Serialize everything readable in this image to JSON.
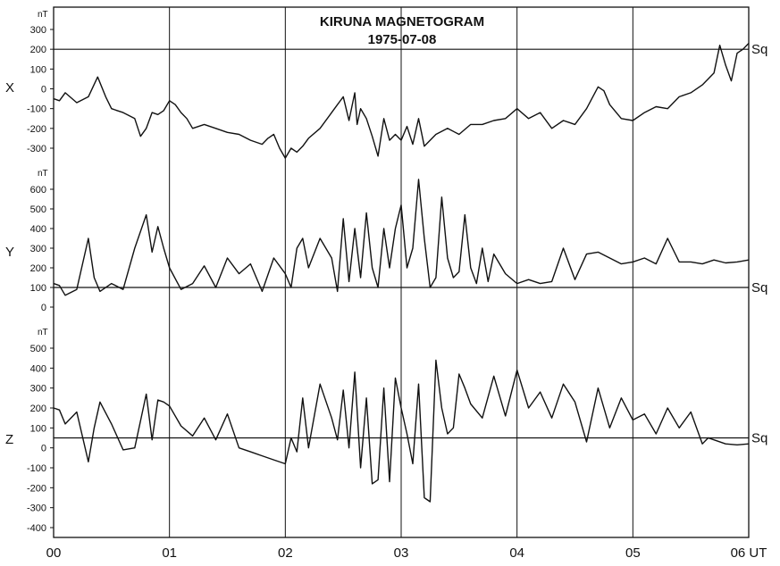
{
  "chart_data": {
    "type": "line",
    "title": "KIRUNA MAGNETOGRAM",
    "subtitle": "1975-07-08",
    "x_tick_labels": [
      "00",
      "01",
      "02",
      "03",
      "04",
      "05",
      "06 UT"
    ],
    "xlim": [
      0,
      6
    ],
    "panels": [
      {
        "component": "X",
        "unit": "nT",
        "ylim": [
          -300,
          300
        ],
        "ticks": [
          300,
          200,
          100,
          0,
          -100,
          -200,
          -300
        ],
        "tick_labels": [
          "300",
          "200",
          "100",
          "0",
          "-100",
          "-200",
          "-300"
        ],
        "sq_value": 200,
        "sq_label": "Sq",
        "x": [
          0,
          0.05,
          0.1,
          0.2,
          0.3,
          0.38,
          0.45,
          0.5,
          0.55,
          0.6,
          0.7,
          0.75,
          0.8,
          0.85,
          0.9,
          0.95,
          1.0,
          1.05,
          1.1,
          1.15,
          1.2,
          1.3,
          1.4,
          1.5,
          1.6,
          1.7,
          1.8,
          1.85,
          1.9,
          1.95,
          2.0,
          2.05,
          2.1,
          2.15,
          2.2,
          2.3,
          2.4,
          2.45,
          2.5,
          2.55,
          2.6,
          2.62,
          2.65,
          2.7,
          2.75,
          2.8,
          2.85,
          2.9,
          2.95,
          3.0,
          3.05,
          3.1,
          3.15,
          3.2,
          3.3,
          3.4,
          3.5,
          3.6,
          3.7,
          3.8,
          3.9,
          4.0,
          4.1,
          4.2,
          4.3,
          4.4,
          4.5,
          4.6,
          4.7,
          4.75,
          4.8,
          4.9,
          5.0,
          5.1,
          5.2,
          5.3,
          5.4,
          5.5,
          5.6,
          5.7,
          5.75,
          5.8,
          5.85,
          5.9,
          5.95,
          6.0
        ],
        "y": [
          -50,
          -60,
          -20,
          -70,
          -40,
          60,
          -40,
          -100,
          -110,
          -120,
          -150,
          -240,
          -200,
          -120,
          -130,
          -110,
          -60,
          -80,
          -120,
          -150,
          -200,
          -180,
          -200,
          -220,
          -230,
          -260,
          -280,
          -250,
          -230,
          -300,
          -350,
          -300,
          -320,
          -290,
          -250,
          -200,
          -120,
          -80,
          -40,
          -160,
          -20,
          -180,
          -100,
          -150,
          -240,
          -340,
          -150,
          -260,
          -230,
          -260,
          -190,
          -280,
          -150,
          -290,
          -230,
          -200,
          -230,
          -180,
          -180,
          -160,
          -150,
          -100,
          -150,
          -120,
          -200,
          -160,
          -180,
          -100,
          10,
          -10,
          -80,
          -150,
          -160,
          -120,
          -90,
          -100,
          -40,
          -20,
          20,
          80,
          220,
          120,
          40,
          180,
          200,
          230
        ]
      },
      {
        "component": "Y",
        "unit": "nT",
        "ylim": [
          0,
          600
        ],
        "ticks": [
          600,
          500,
          400,
          300,
          200,
          100,
          0
        ],
        "tick_labels": [
          "600",
          "500",
          "400",
          "300",
          "200",
          "100",
          "0"
        ],
        "sq_value": 100,
        "sq_label": "Sq",
        "x": [
          0,
          0.05,
          0.1,
          0.2,
          0.3,
          0.35,
          0.4,
          0.5,
          0.6,
          0.7,
          0.8,
          0.85,
          0.9,
          0.95,
          1.0,
          1.1,
          1.2,
          1.3,
          1.4,
          1.5,
          1.6,
          1.7,
          1.8,
          1.9,
          2.0,
          2.05,
          2.1,
          2.15,
          2.2,
          2.3,
          2.4,
          2.45,
          2.5,
          2.55,
          2.6,
          2.65,
          2.7,
          2.75,
          2.8,
          2.85,
          2.9,
          2.95,
          3.0,
          3.05,
          3.1,
          3.15,
          3.2,
          3.25,
          3.3,
          3.35,
          3.4,
          3.45,
          3.5,
          3.55,
          3.6,
          3.65,
          3.7,
          3.75,
          3.8,
          3.9,
          4.0,
          4.1,
          4.2,
          4.3,
          4.4,
          4.5,
          4.6,
          4.7,
          4.8,
          4.9,
          5.0,
          5.1,
          5.2,
          5.3,
          5.4,
          5.5,
          5.6,
          5.7,
          5.8,
          5.9,
          6.0
        ],
        "y": [
          120,
          110,
          60,
          90,
          350,
          150,
          80,
          120,
          90,
          300,
          470,
          280,
          410,
          300,
          200,
          90,
          120,
          210,
          100,
          250,
          170,
          220,
          80,
          250,
          170,
          100,
          300,
          350,
          200,
          350,
          250,
          80,
          450,
          130,
          400,
          150,
          480,
          200,
          100,
          400,
          200,
          400,
          520,
          200,
          300,
          650,
          350,
          100,
          150,
          560,
          250,
          150,
          180,
          470,
          200,
          120,
          300,
          130,
          270,
          170,
          120,
          140,
          120,
          130,
          300,
          140,
          270,
          280,
          250,
          220,
          230,
          250,
          220,
          350,
          230,
          230,
          220,
          240,
          225,
          230,
          240
        ]
      },
      {
        "component": "Z",
        "unit": "nT",
        "ylim": [
          -400,
          500
        ],
        "ticks": [
          500,
          400,
          300,
          200,
          100,
          0,
          -100,
          -200,
          -300,
          -400
        ],
        "tick_labels": [
          "500",
          "400",
          "300",
          "200",
          "100",
          "0",
          "-100",
          "-200",
          "-300",
          "-400"
        ],
        "sq_value": 50,
        "sq_label": "Sq",
        "x": [
          0,
          0.05,
          0.1,
          0.2,
          0.3,
          0.35,
          0.4,
          0.5,
          0.6,
          0.7,
          0.8,
          0.85,
          0.9,
          0.95,
          1.0,
          1.1,
          1.2,
          1.3,
          1.4,
          1.5,
          1.6,
          1.7,
          1.8,
          1.9,
          2.0,
          2.05,
          2.1,
          2.15,
          2.2,
          2.3,
          2.4,
          2.45,
          2.5,
          2.55,
          2.6,
          2.65,
          2.7,
          2.75,
          2.8,
          2.85,
          2.9,
          2.95,
          3.0,
          3.05,
          3.1,
          3.15,
          3.2,
          3.25,
          3.3,
          3.35,
          3.4,
          3.45,
          3.5,
          3.55,
          3.6,
          3.7,
          3.8,
          3.9,
          4.0,
          4.1,
          4.2,
          4.3,
          4.4,
          4.5,
          4.6,
          4.7,
          4.8,
          4.9,
          5.0,
          5.1,
          5.2,
          5.3,
          5.4,
          5.5,
          5.6,
          5.65,
          5.7,
          5.8,
          5.9,
          6.0
        ],
        "y": [
          200,
          190,
          120,
          180,
          -70,
          100,
          230,
          120,
          -10,
          0,
          270,
          40,
          240,
          230,
          210,
          110,
          60,
          150,
          40,
          170,
          0,
          -20,
          -40,
          -60,
          -80,
          50,
          -20,
          250,
          0,
          320,
          150,
          40,
          290,
          0,
          380,
          -100,
          250,
          -180,
          -160,
          300,
          -170,
          350,
          200,
          70,
          -80,
          320,
          -250,
          -270,
          440,
          200,
          70,
          100,
          370,
          300,
          220,
          150,
          360,
          160,
          390,
          200,
          280,
          150,
          320,
          230,
          30,
          300,
          100,
          250,
          140,
          170,
          70,
          200,
          100,
          180,
          20,
          50,
          40,
          20,
          15,
          20
        ]
      }
    ]
  }
}
